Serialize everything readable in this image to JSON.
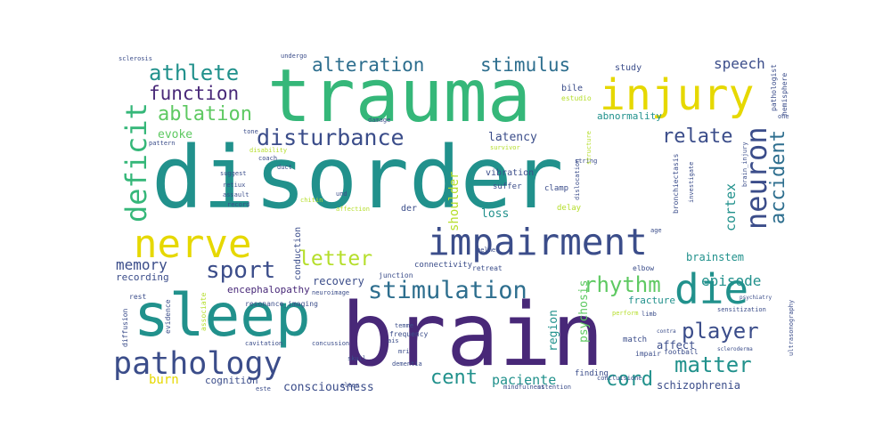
{
  "palette": {
    "purple": "#440154",
    "indigo": "#3b4d8a",
    "blue": "#355f8d",
    "teal": "#21918c",
    "green": "#35b779",
    "lime": "#90d743",
    "yellow": "#e6d800"
  },
  "words": [
    {
      "text": "disorder",
      "color": "#21918c"
    },
    {
      "text": "brain",
      "color": "#482878"
    },
    {
      "text": "trauma",
      "color": "#35b779"
    },
    {
      "text": "sleep",
      "color": "#21918c"
    },
    {
      "text": "impairment",
      "color": "#3b4d8a"
    },
    {
      "text": "injury",
      "color": "#e6d800"
    },
    {
      "text": "nerve",
      "color": "#e6d800"
    },
    {
      "text": "die",
      "color": "#21918c"
    },
    {
      "text": "pathology",
      "color": "#3b4d8a"
    },
    {
      "text": "stimulation",
      "color": "#2d6e8e"
    },
    {
      "text": "disturbance",
      "color": "#3b4d8a"
    },
    {
      "text": "deficit",
      "color": "#35b779"
    },
    {
      "text": "neuron",
      "color": "#3b4d8a"
    },
    {
      "text": "alteration",
      "color": "#2d6e8e"
    },
    {
      "text": "stimulus",
      "color": "#2d6e8e"
    },
    {
      "text": "athlete",
      "color": "#21918c"
    },
    {
      "text": "ablation",
      "color": "#5ec962"
    },
    {
      "text": "function",
      "color": "#482878"
    },
    {
      "text": "sport",
      "color": "#3b4d8a"
    },
    {
      "text": "letter",
      "color": "#b5de2b"
    },
    {
      "text": "matter",
      "color": "#21918c"
    },
    {
      "text": "rhythm",
      "color": "#5ec962"
    },
    {
      "text": "player",
      "color": "#3b4d8a"
    },
    {
      "text": "cord",
      "color": "#21918c"
    },
    {
      "text": "cent",
      "color": "#21918c"
    },
    {
      "text": "relate",
      "color": "#3b4d8a"
    },
    {
      "text": "accident",
      "color": "#2d6e8e"
    },
    {
      "text": "episode",
      "color": "#21918c"
    },
    {
      "text": "memory",
      "color": "#3b4d8a"
    },
    {
      "text": "speech",
      "color": "#3b4d8a"
    },
    {
      "text": "cortex",
      "color": "#21918c"
    },
    {
      "text": "paciente",
      "color": "#21918c"
    },
    {
      "text": "consciousness",
      "color": "#3b4d8a"
    },
    {
      "text": "schizophrenia",
      "color": "#3b4d8a"
    },
    {
      "text": "latency",
      "color": "#3b4d8a"
    },
    {
      "text": "shoulder",
      "color": "#b5de2b"
    },
    {
      "text": "psychosis",
      "color": "#5ec962"
    },
    {
      "text": "region",
      "color": "#21918c"
    },
    {
      "text": "recovery",
      "color": "#3b4d8a"
    },
    {
      "text": "loss",
      "color": "#21918c"
    },
    {
      "text": "burn",
      "color": "#e6d800"
    },
    {
      "text": "cognition",
      "color": "#3b4d8a"
    },
    {
      "text": "encephalopathy",
      "color": "#482878"
    },
    {
      "text": "conduction",
      "color": "#3b4d8a"
    },
    {
      "text": "brainstem",
      "color": "#21918c"
    },
    {
      "text": "affect",
      "color": "#3b4d8a"
    },
    {
      "text": "fracture",
      "color": "#21918c"
    },
    {
      "text": "evoke",
      "color": "#5ec962"
    },
    {
      "text": "abnormality",
      "color": "#21918c"
    },
    {
      "text": "study",
      "color": "#3b4d8a"
    },
    {
      "text": "bile",
      "color": "#3b4d8a"
    },
    {
      "text": "estudio",
      "color": "#b5de2b"
    },
    {
      "text": "recording",
      "color": "#3b4d8a"
    },
    {
      "text": "vibration",
      "color": "#3b4d8a"
    },
    {
      "text": "suffer",
      "color": "#3b4d8a"
    },
    {
      "text": "clamp",
      "color": "#3b4d8a"
    },
    {
      "text": "delay",
      "color": "#b5de2b"
    },
    {
      "text": "der",
      "color": "#3b4d8a"
    },
    {
      "text": "connectivity",
      "color": "#3b4d8a"
    },
    {
      "text": "junction",
      "color": "#3b4d8a"
    },
    {
      "text": "retreat",
      "color": "#3b4d8a"
    },
    {
      "text": "neuroimage",
      "color": "#3b4d8a"
    },
    {
      "text": "helmet",
      "color": "#3b4d8a"
    },
    {
      "text": "resonance_imaging",
      "color": "#3b4d8a"
    },
    {
      "text": "match",
      "color": "#3b4d8a"
    },
    {
      "text": "elbow",
      "color": "#3b4d8a"
    },
    {
      "text": "finding",
      "color": "#3b4d8a"
    },
    {
      "text": "football",
      "color": "#3b4d8a"
    },
    {
      "text": "frequency",
      "color": "#3b4d8a"
    },
    {
      "text": "dementia",
      "color": "#3b4d8a"
    },
    {
      "text": "skull",
      "color": "#3b4d8a"
    },
    {
      "text": "impair",
      "color": "#3b4d8a"
    },
    {
      "text": "rest",
      "color": "#3b4d8a"
    },
    {
      "text": "diffusion",
      "color": "#3b4d8a"
    },
    {
      "text": "evidence",
      "color": "#3b4d8a"
    },
    {
      "text": "associate",
      "color": "#b5de2b"
    },
    {
      "text": "coach",
      "color": "#3b4d8a"
    },
    {
      "text": "retiux",
      "color": "#3b4d8a"
    },
    {
      "text": "assault",
      "color": "#3b4d8a"
    },
    {
      "text": "record",
      "color": "#3b4d8a"
    },
    {
      "text": "suggest",
      "color": "#3b4d8a"
    },
    {
      "text": "tone",
      "color": "#3b4d8a"
    },
    {
      "text": "duct",
      "color": "#3b4d8a"
    },
    {
      "text": "pattern",
      "color": "#3b4d8a"
    },
    {
      "text": "damage",
      "color": "#3b4d8a"
    },
    {
      "text": "string",
      "color": "#3b4d8a"
    },
    {
      "text": "undergo",
      "color": "#3b4d8a"
    },
    {
      "text": "sclerosis",
      "color": "#3b4d8a"
    },
    {
      "text": "pathologist",
      "color": "#3b4d8a"
    },
    {
      "text": "hemisphere",
      "color": "#3b4d8a"
    },
    {
      "text": "brain_injury",
      "color": "#3b4d8a"
    },
    {
      "text": "bronchiectasis",
      "color": "#3b4d8a"
    },
    {
      "text": "investigate",
      "color": "#3b4d8a"
    },
    {
      "text": "dislocation",
      "color": "#3b4d8a"
    },
    {
      "text": "structure",
      "color": "#b5de2b"
    },
    {
      "text": "sensitization",
      "color": "#3b4d8a"
    },
    {
      "text": "psychiatry",
      "color": "#3b4d8a"
    },
    {
      "text": "ultrasonography",
      "color": "#3b4d8a"
    },
    {
      "text": "scleroderma",
      "color": "#3b4d8a"
    },
    {
      "text": "concussion",
      "color": "#3b4d8a"
    },
    {
      "text": "cavitation",
      "color": "#3b4d8a"
    },
    {
      "text": "limb",
      "color": "#3b4d8a"
    },
    {
      "text": "perform",
      "color": "#b5de2b"
    },
    {
      "text": "alter",
      "color": "#3b4d8a"
    },
    {
      "text": "ais",
      "color": "#3b4d8a"
    },
    {
      "text": "mri",
      "color": "#3b4d8a"
    },
    {
      "text": "concluisione",
      "color": "#3b4d8a"
    },
    {
      "text": "mindfulness",
      "color": "#3b4d8a"
    },
    {
      "text": "attention",
      "color": "#3b4d8a"
    },
    {
      "text": "este",
      "color": "#3b4d8a"
    },
    {
      "text": "disability",
      "color": "#b5de2b"
    },
    {
      "text": "chitin",
      "color": "#b5de2b"
    },
    {
      "text": "und",
      "color": "#3b4d8a"
    },
    {
      "text": "affection",
      "color": "#b5de2b"
    },
    {
      "text": "temme",
      "color": "#3b4d8a"
    },
    {
      "text": "survivor",
      "color": "#b5de2b"
    },
    {
      "text": "contra",
      "color": "#3b4d8a"
    },
    {
      "text": "one",
      "color": "#3b4d8a"
    },
    {
      "text": "age",
      "color": "#3b4d8a"
    }
  ]
}
